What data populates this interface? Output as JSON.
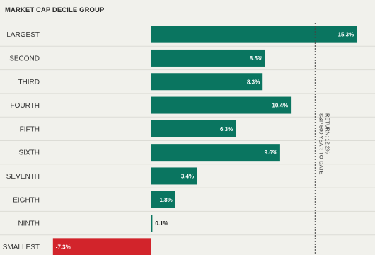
{
  "chart_data": {
    "type": "bar",
    "orientation": "horizontal",
    "title": "MARKET CAP DECILE GROUP",
    "categories": [
      "LARGEST",
      "SECOND",
      "THIRD",
      "FOURTH",
      "FIFTH",
      "SIXTH",
      "SEVENTH",
      "EIGHTH",
      "NINTH",
      "SMALLEST"
    ],
    "values": [
      15.3,
      8.5,
      8.3,
      10.4,
      6.3,
      9.6,
      3.4,
      1.8,
      0.1,
      -7.3
    ],
    "value_labels": [
      "15.3%",
      "8.5%",
      "8.3%",
      "10.4%",
      "6.3%",
      "9.6%",
      "3.4%",
      "1.8%",
      "0.1%",
      "-7.3%"
    ],
    "reference_line": {
      "value": 12.2,
      "label_line1": "S&P 500 YEAR-TO-DATE",
      "label_line2": "RETURN: 12.2%"
    },
    "xlim": [
      -7.3,
      15.3
    ],
    "grid": false,
    "colors": {
      "positive": "#0a7560",
      "negative": "#d2242b",
      "text": "#333333",
      "divider": "#dcdcd6"
    }
  }
}
